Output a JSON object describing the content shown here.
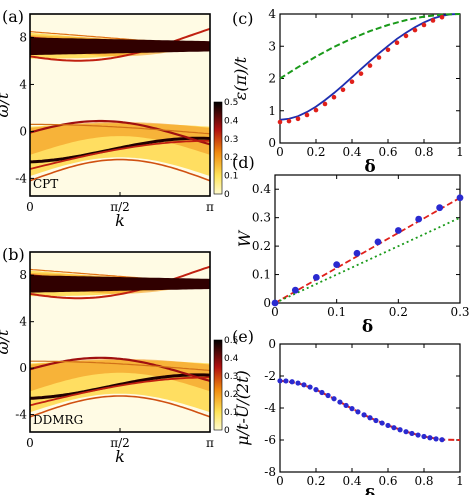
{
  "chart_data": [
    {
      "id": "a",
      "type": "heatmap",
      "panel_label": "(a)",
      "inset_label": "CPT",
      "xlabel": "k",
      "ylabel": "ω/t",
      "xlim": [
        0,
        3.1416
      ],
      "ylim": [
        -5.5,
        10
      ],
      "xticks": [
        {
          "value": 0,
          "label": "0"
        },
        {
          "value": 1.5708,
          "label": "π/2"
        },
        {
          "value": 3.1416,
          "label": "π"
        }
      ],
      "yticks": [
        {
          "value": -4,
          "label": "-4"
        },
        {
          "value": 0,
          "label": "0"
        },
        {
          "value": 4,
          "label": "4"
        },
        {
          "value": 8,
          "label": "8"
        }
      ],
      "colorbar": {
        "min": 0,
        "max": 0.5,
        "ticks": [
          "0",
          "0.1",
          "0.2",
          "0.3",
          "0.4",
          "0.5"
        ]
      }
    },
    {
      "id": "b",
      "type": "heatmap",
      "panel_label": "(b)",
      "inset_label": "DDMRG",
      "xlabel": "k",
      "ylabel": "ω/t",
      "xlim": [
        0,
        3.1416
      ],
      "ylim": [
        -5.5,
        10
      ],
      "xticks": [
        {
          "value": 0,
          "label": "0"
        },
        {
          "value": 1.5708,
          "label": "π/2"
        },
        {
          "value": 3.1416,
          "label": "π"
        }
      ],
      "yticks": [
        {
          "value": -4,
          "label": "-4"
        },
        {
          "value": 0,
          "label": "0"
        },
        {
          "value": 4,
          "label": "4"
        },
        {
          "value": 8,
          "label": "8"
        }
      ],
      "colorbar": {
        "min": 0,
        "max": 0.5,
        "ticks": [
          "0",
          "0.1",
          "0.2",
          "0.3",
          "0.4",
          "0.5"
        ]
      }
    },
    {
      "id": "c",
      "type": "line",
      "panel_label": "(c)",
      "xlabel": "δ",
      "ylabel": "ε(π)/t",
      "xlim": [
        0,
        1
      ],
      "ylim": [
        0,
        4
      ],
      "xticks": [
        "0",
        "0.2",
        "0.4",
        "0.6",
        "0.8",
        "1"
      ],
      "yticks": [
        "0",
        "1",
        "2",
        "3",
        "4"
      ],
      "series": [
        {
          "style": "solid",
          "color": "#1f2fb0",
          "x": [
            0,
            0.05,
            0.1,
            0.15,
            0.2,
            0.25,
            0.3,
            0.35,
            0.4,
            0.45,
            0.5,
            0.55,
            0.6,
            0.65,
            0.7,
            0.75,
            0.8,
            0.85,
            0.9,
            0.95,
            1.0
          ],
          "y": [
            0.72,
            0.75,
            0.83,
            0.96,
            1.13,
            1.33,
            1.55,
            1.79,
            2.04,
            2.29,
            2.54,
            2.78,
            3.01,
            3.23,
            3.42,
            3.59,
            3.74,
            3.86,
            3.94,
            3.99,
            4.0
          ]
        },
        {
          "style": "dashed",
          "color": "#1a9a1a",
          "x": [
            0,
            0.1,
            0.2,
            0.3,
            0.4,
            0.5,
            0.6,
            0.7,
            0.8,
            0.9,
            1.0
          ],
          "y": [
            2.0,
            2.35,
            2.68,
            2.98,
            3.24,
            3.47,
            3.66,
            3.81,
            3.92,
            3.98,
            4.0
          ]
        },
        {
          "style": "dotted",
          "color": "#e0201a",
          "x": [
            0,
            0.05,
            0.1,
            0.15,
            0.2,
            0.25,
            0.3,
            0.35,
            0.4,
            0.45,
            0.5,
            0.55,
            0.6,
            0.65,
            0.7,
            0.75,
            0.8,
            0.85,
            0.9
          ],
          "y": [
            0.65,
            0.68,
            0.75,
            0.87,
            1.02,
            1.21,
            1.42,
            1.65,
            1.9,
            2.15,
            2.4,
            2.65,
            2.89,
            3.11,
            3.32,
            3.5,
            3.66,
            3.8,
            3.9
          ]
        }
      ]
    },
    {
      "id": "d",
      "type": "scatter",
      "panel_label": "(d)",
      "xlabel": "δ",
      "ylabel": "W",
      "xlim": [
        0,
        0.3
      ],
      "ylim": [
        0,
        0.45
      ],
      "xticks": [
        "0",
        "0.1",
        "0.2",
        "0.3"
      ],
      "yticks": [
        "0",
        "0.1",
        "0.2",
        "0.3",
        "0.4"
      ],
      "points": {
        "color": "#2a2ad0",
        "x": [
          0,
          0.033,
          0.067,
          0.1,
          0.133,
          0.167,
          0.2,
          0.233,
          0.267,
          0.3
        ],
        "y": [
          0,
          0.045,
          0.09,
          0.135,
          0.175,
          0.215,
          0.255,
          0.295,
          0.335,
          0.37
        ]
      },
      "lines": [
        {
          "style": "dashed",
          "color": "#e0201a",
          "x": [
            0,
            0.3
          ],
          "y": [
            0,
            0.37
          ]
        },
        {
          "style": "dotted",
          "color": "#1a9a1a",
          "x": [
            0,
            0.3
          ],
          "y": [
            0,
            0.3
          ]
        }
      ]
    },
    {
      "id": "e",
      "type": "line",
      "panel_label": "(e)",
      "xlabel": "δ",
      "ylabel": "μ/t-U/(2t)",
      "xlim": [
        0,
        1
      ],
      "ylim": [
        -8,
        0
      ],
      "xticks": [
        "0",
        "0.2",
        "0.4",
        "0.6",
        "0.8",
        "1"
      ],
      "yticks": [
        "-8",
        "-6",
        "-4",
        "-2",
        "0"
      ],
      "points": {
        "color": "#2a2ad0",
        "x": [
          0,
          0.033,
          0.067,
          0.1,
          0.133,
          0.167,
          0.2,
          0.233,
          0.267,
          0.3,
          0.333,
          0.367,
          0.4,
          0.433,
          0.467,
          0.5,
          0.533,
          0.567,
          0.6,
          0.633,
          0.667,
          0.7,
          0.733,
          0.767,
          0.8,
          0.833,
          0.867,
          0.9
        ],
        "y": [
          -2.3,
          -2.31,
          -2.36,
          -2.44,
          -2.55,
          -2.69,
          -2.85,
          -3.03,
          -3.22,
          -3.42,
          -3.63,
          -3.84,
          -4.04,
          -4.24,
          -4.43,
          -4.61,
          -4.78,
          -4.94,
          -5.09,
          -5.23,
          -5.36,
          -5.48,
          -5.59,
          -5.69,
          -5.78,
          -5.86,
          -5.93,
          -5.98
        ]
      },
      "series": [
        {
          "style": "dashed",
          "color": "#e0201a",
          "x": [
            0,
            0.1,
            0.2,
            0.3,
            0.4,
            0.5,
            0.6,
            0.7,
            0.8,
            0.9,
            1.0
          ],
          "y": [
            -2.3,
            -2.44,
            -2.85,
            -3.42,
            -4.04,
            -4.61,
            -5.09,
            -5.48,
            -5.78,
            -5.98,
            -6.0
          ]
        }
      ]
    }
  ]
}
